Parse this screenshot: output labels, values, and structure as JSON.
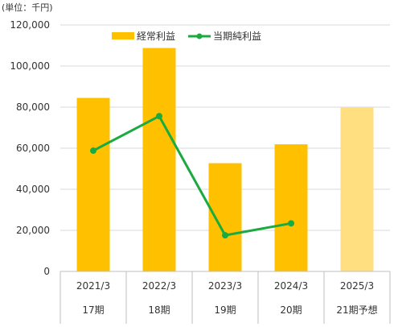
{
  "chart_data": {
    "type": "bar",
    "unit_label": "(単位：千円)",
    "categories": [
      "2021/3",
      "2022/3",
      "2023/3",
      "2024/3",
      "2025/3"
    ],
    "periods": [
      "17期",
      "18期",
      "19期",
      "20期",
      "21期予想"
    ],
    "ylim": [
      0,
      120000
    ],
    "yticks": [
      "0",
      "20,000",
      "40,000",
      "60,000",
      "80,000",
      "100,000",
      "120,000"
    ],
    "ytick_values": [
      0,
      20000,
      40000,
      60000,
      80000,
      100000,
      120000
    ],
    "grid": true,
    "legend_position": "top",
    "series": [
      {
        "name": "経常利益",
        "type": "bar",
        "color": "#FFC000",
        "forecast_color": "#FFDF80",
        "values": [
          84500,
          108800,
          52700,
          61900,
          80000
        ]
      },
      {
        "name": "当期純利益",
        "type": "line",
        "color": "#1AAB40",
        "values": [
          58800,
          75600,
          17600,
          23400,
          null
        ]
      }
    ]
  }
}
